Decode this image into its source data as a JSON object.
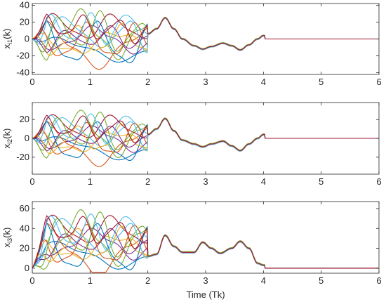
{
  "chart_data": [
    {
      "type": "line",
      "ylabel_main": "x",
      "ylabel_sub": "i1",
      "ylabel_tail": "(k)",
      "xlabel": "",
      "xlim": [
        0,
        6
      ],
      "ylim": [
        -42,
        42
      ],
      "xticks": [
        "0",
        "1",
        "2",
        "3",
        "4",
        "5",
        "6"
      ],
      "yticks": [
        -40,
        -20,
        0,
        20,
        40
      ],
      "yticklabels": [
        "-40",
        "-20",
        "0",
        "20",
        "40"
      ],
      "transient_amp": 36,
      "transient_base": 0,
      "consensus": [
        [
          2.0,
          6
        ],
        [
          2.15,
          12
        ],
        [
          2.3,
          25
        ],
        [
          2.45,
          12
        ],
        [
          2.6,
          0
        ],
        [
          2.8,
          -8
        ],
        [
          2.95,
          -12
        ],
        [
          3.1,
          -9
        ],
        [
          3.3,
          -5
        ],
        [
          3.45,
          -8
        ],
        [
          3.6,
          -13
        ],
        [
          3.75,
          -7
        ],
        [
          3.9,
          0
        ],
        [
          4.0,
          4
        ]
      ],
      "series": [
        {
          "color": "#0072bd"
        },
        {
          "color": "#d95319"
        },
        {
          "color": "#edb120"
        },
        {
          "color": "#7e2f8e"
        },
        {
          "color": "#77ac30"
        },
        {
          "color": "#4dbeee"
        },
        {
          "color": "#a2142f"
        },
        {
          "color": "#0072bd"
        },
        {
          "color": "#d95319"
        },
        {
          "color": "#edb120"
        },
        {
          "color": "#7e2f8e"
        },
        {
          "color": "#77ac30"
        },
        {
          "color": "#4dbeee"
        },
        {
          "color": "#a2142f"
        }
      ]
    },
    {
      "type": "line",
      "ylabel_main": "x",
      "ylabel_sub": "i2",
      "ylabel_tail": "(k)",
      "xlabel": "",
      "xlim": [
        0,
        6
      ],
      "ylim": [
        -38,
        38
      ],
      "xticks": [
        "0",
        "1",
        "2",
        "3",
        "4",
        "5",
        "6"
      ],
      "yticks": [
        -20,
        0,
        20
      ],
      "yticklabels": [
        "-20",
        "0",
        "20"
      ],
      "transient_amp": 30,
      "transient_base": 0,
      "consensus": [
        [
          2.0,
          4
        ],
        [
          2.15,
          10
        ],
        [
          2.3,
          21
        ],
        [
          2.45,
          8
        ],
        [
          2.6,
          -2
        ],
        [
          2.8,
          -6
        ],
        [
          2.95,
          -9
        ],
        [
          3.1,
          -6
        ],
        [
          3.3,
          -3
        ],
        [
          3.45,
          -8
        ],
        [
          3.6,
          -13
        ],
        [
          3.75,
          -6
        ],
        [
          3.9,
          0
        ],
        [
          4.0,
          4
        ]
      ],
      "series": [
        {
          "color": "#0072bd"
        },
        {
          "color": "#d95319"
        },
        {
          "color": "#edb120"
        },
        {
          "color": "#7e2f8e"
        },
        {
          "color": "#77ac30"
        },
        {
          "color": "#4dbeee"
        },
        {
          "color": "#a2142f"
        },
        {
          "color": "#0072bd"
        },
        {
          "color": "#d95319"
        },
        {
          "color": "#edb120"
        },
        {
          "color": "#7e2f8e"
        },
        {
          "color": "#77ac30"
        },
        {
          "color": "#4dbeee"
        },
        {
          "color": "#a2142f"
        }
      ]
    },
    {
      "type": "line",
      "ylabel_main": "x",
      "ylabel_sub": "i3",
      "ylabel_tail": "(k)",
      "xlabel": "Time (Tk)",
      "xlim": [
        0,
        6
      ],
      "ylim": [
        -5,
        67
      ],
      "xticks": [
        "0",
        "1",
        "2",
        "3",
        "4",
        "5",
        "6"
      ],
      "yticks": [
        0,
        20,
        40,
        60
      ],
      "yticklabels": [
        "0",
        "20",
        "40",
        "60"
      ],
      "transient_amp": 34,
      "transient_base": 25,
      "consensus": [
        [
          2.0,
          12
        ],
        [
          2.15,
          14
        ],
        [
          2.3,
          33
        ],
        [
          2.45,
          22
        ],
        [
          2.6,
          16
        ],
        [
          2.8,
          16
        ],
        [
          2.95,
          26
        ],
        [
          3.1,
          20
        ],
        [
          3.25,
          15
        ],
        [
          3.45,
          20
        ],
        [
          3.6,
          27
        ],
        [
          3.75,
          20
        ],
        [
          3.9,
          5
        ],
        [
          4.0,
          3
        ]
      ],
      "series": [
        {
          "color": "#0072bd"
        },
        {
          "color": "#d95319"
        },
        {
          "color": "#edb120"
        },
        {
          "color": "#7e2f8e"
        },
        {
          "color": "#77ac30"
        },
        {
          "color": "#4dbeee"
        },
        {
          "color": "#a2142f"
        },
        {
          "color": "#0072bd"
        },
        {
          "color": "#d95319"
        },
        {
          "color": "#edb120"
        },
        {
          "color": "#7e2f8e"
        },
        {
          "color": "#77ac30"
        },
        {
          "color": "#4dbeee"
        },
        {
          "color": "#a2142f"
        }
      ]
    }
  ]
}
